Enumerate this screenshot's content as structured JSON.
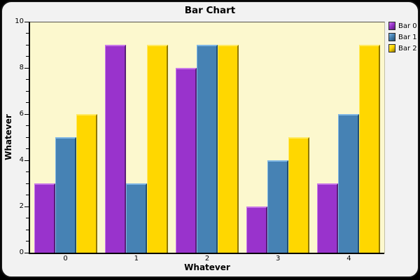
{
  "chart_data": {
    "type": "bar",
    "title": "Bar Chart",
    "xlabel": "Whatever",
    "ylabel": "Whatever",
    "categories": [
      "0",
      "1",
      "2",
      "3",
      "4"
    ],
    "series": [
      {
        "name": "Bar 0",
        "color": "#9933CC",
        "color_light": "#C878E8",
        "color_dark": "#5A1E78",
        "values": [
          3,
          9,
          8,
          2,
          3
        ]
      },
      {
        "name": "Bar 1",
        "color": "#4682B4",
        "color_light": "#7EB6E4",
        "color_dark": "#24506F",
        "values": [
          5,
          3,
          9,
          4,
          6
        ]
      },
      {
        "name": "Bar 2",
        "color": "#FFD700",
        "color_light": "#FFEA61",
        "color_dark": "#8F7700",
        "values": [
          6,
          9,
          9,
          5,
          9
        ]
      }
    ],
    "ylim": [
      0,
      10
    ],
    "ytick_step": 2,
    "yminor_step": 0.5,
    "ytick_labels": [
      "0",
      "2",
      "4",
      "6",
      "8",
      "10"
    ],
    "grid": false,
    "legend_position": "top-right",
    "plot_bg": "#FCF8CE",
    "panel_bg": "#F2F2F2"
  }
}
